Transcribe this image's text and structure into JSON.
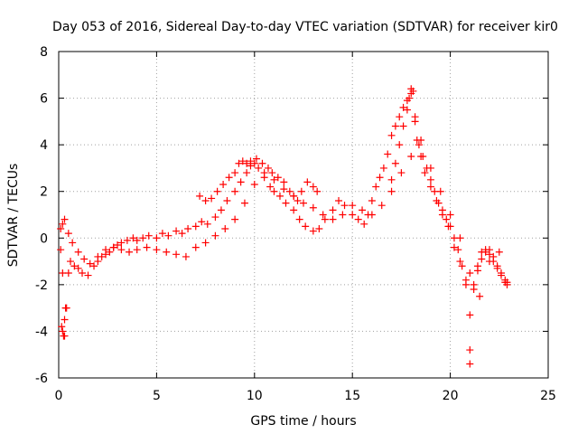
{
  "chart_data": {
    "type": "scatter",
    "title": "Day 053 of 2016, Sidereal Day-to-day VTEC variation (SDTVAR) for receiver kir0",
    "xlabel": "GPS time / hours",
    "ylabel": "SDTVAR / TECUs",
    "xlim": [
      0,
      25
    ],
    "ylim": [
      -6,
      8
    ],
    "xticks": [
      0,
      5,
      10,
      15,
      20,
      25
    ],
    "yticks": [
      -6,
      -4,
      -2,
      0,
      2,
      4,
      6,
      8
    ],
    "grid": true,
    "marker": "+",
    "colors": {
      "series": "#ff0000",
      "grid": "#a0a0a0",
      "axes": "#000000"
    },
    "series": [
      {
        "name": "SDTVAR",
        "x": [
          0.1,
          0.2,
          0.3,
          0.4,
          0.5,
          0.6,
          0.8,
          1.0,
          1.2,
          1.5,
          1.8,
          2.0,
          2.2,
          2.4,
          2.6,
          2.8,
          3.0,
          3.2,
          3.5,
          3.8,
          4.0,
          4.3,
          4.6,
          5.0,
          5.3,
          5.6,
          6.0,
          6.3,
          6.6,
          7.0,
          7.3,
          7.6,
          8.0,
          8.3,
          8.6,
          9.0,
          9.3,
          9.6,
          9.8,
          10.0,
          10.2,
          10.5,
          10.8,
          11.0,
          11.3,
          11.6,
          12.0,
          12.3,
          12.6,
          13.0,
          13.3,
          13.6,
          14.0,
          14.3,
          14.6,
          15.0,
          15.3,
          15.6,
          15.8,
          16.0,
          16.2,
          16.4,
          16.6,
          16.8,
          17.0,
          17.2,
          17.4,
          17.6,
          17.8,
          18.0,
          18.2,
          18.4,
          18.6,
          18.8,
          19.0,
          19.2,
          19.4,
          19.6,
          19.8,
          20.0,
          20.2,
          20.4,
          20.6,
          20.8,
          21.0,
          21.2,
          21.4,
          21.6,
          21.8,
          22.0,
          22.2,
          22.4,
          22.6,
          22.8,
          0.1,
          0.2,
          0.3,
          0.5,
          0.7,
          1.0,
          1.3,
          1.6,
          2.0,
          2.4,
          2.8,
          3.2,
          3.6,
          4.0,
          4.5,
          5.0,
          5.5,
          6.0,
          6.5,
          7.0,
          7.5,
          8.0,
          8.5,
          9.0,
          9.5,
          10.0,
          10.5,
          11.0,
          11.5,
          12.0,
          12.5,
          13.0,
          13.5,
          14.0,
          14.5,
          15.0,
          15.5,
          16.0,
          16.5,
          17.0,
          17.5,
          18.0,
          18.5,
          19.0,
          19.5,
          20.0,
          20.5,
          21.0,
          21.5,
          22.0,
          22.5,
          22.9,
          0.15,
          0.2,
          0.25,
          0.3,
          0.35,
          7.2,
          7.5,
          7.8,
          8.1,
          8.4,
          8.7,
          9.0,
          9.2,
          9.4,
          9.6,
          9.8,
          10.1,
          10.4,
          10.7,
          10.9,
          11.2,
          11.5,
          11.8,
          12.0,
          12.2,
          12.4,
          12.7,
          13.0,
          13.2,
          17.0,
          17.2,
          17.4,
          17.6,
          17.8,
          17.9,
          18.0,
          18.1,
          18.2,
          18.3,
          18.5,
          18.7,
          19.0,
          19.3,
          19.6,
          19.9,
          20.2,
          20.5,
          20.8,
          21.0,
          21.0,
          21.2,
          21.4,
          21.6,
          21.8,
          22.0,
          22.2,
          22.4,
          22.6,
          22.8,
          22.9
        ],
        "y": [
          -0.5,
          -1.5,
          -4.2,
          -3.0,
          -1.5,
          -1.0,
          -1.2,
          -1.3,
          -1.5,
          -1.6,
          -1.2,
          -1.0,
          -0.8,
          -0.7,
          -0.6,
          -0.4,
          -0.3,
          -0.2,
          -0.1,
          0.0,
          -0.1,
          0.0,
          0.1,
          0.0,
          0.2,
          0.1,
          0.3,
          0.2,
          0.4,
          0.5,
          0.7,
          0.6,
          0.9,
          1.2,
          1.6,
          2.0,
          2.4,
          2.8,
          3.1,
          3.2,
          3.0,
          2.6,
          2.2,
          2.0,
          1.8,
          1.5,
          1.2,
          0.8,
          0.5,
          0.3,
          0.4,
          0.8,
          1.2,
          1.6,
          1.4,
          1.0,
          0.8,
          0.6,
          1.0,
          1.6,
          2.2,
          2.6,
          3.0,
          3.6,
          4.4,
          4.8,
          5.2,
          5.6,
          5.9,
          6.2,
          5.0,
          4.0,
          3.5,
          3.0,
          2.5,
          2.0,
          1.5,
          1.2,
          0.8,
          0.5,
          0.0,
          -0.5,
          -1.2,
          -2.0,
          -3.3,
          -2.2,
          -1.4,
          -0.9,
          -0.6,
          -0.5,
          -0.8,
          -1.2,
          -1.5,
          -1.8,
          0.4,
          0.6,
          0.8,
          0.2,
          -0.2,
          -0.6,
          -0.9,
          -1.1,
          -0.8,
          -0.5,
          -0.4,
          -0.5,
          -0.6,
          -0.5,
          -0.4,
          -0.5,
          -0.6,
          -0.7,
          -0.8,
          -0.4,
          -0.2,
          0.1,
          0.4,
          0.8,
          1.5,
          2.3,
          2.8,
          2.5,
          2.1,
          1.8,
          1.5,
          1.3,
          1.0,
          0.8,
          1.0,
          1.4,
          1.2,
          1.0,
          1.4,
          2.0,
          2.8,
          3.5,
          4.2,
          3.0,
          2.0,
          1.0,
          0.0,
          -1.5,
          -2.5,
          -1.0,
          -0.6,
          -1.9,
          -3.8,
          -4.0,
          -4.2,
          -3.5,
          -3.0,
          1.8,
          1.6,
          1.7,
          2.0,
          2.3,
          2.6,
          2.8,
          3.2,
          3.3,
          3.2,
          3.3,
          3.4,
          3.2,
          3.0,
          2.8,
          2.6,
          2.4,
          2.0,
          1.8,
          1.6,
          2.0,
          2.4,
          2.2,
          2.0,
          2.5,
          3.2,
          4.0,
          4.8,
          5.5,
          6.0,
          6.4,
          6.3,
          5.2,
          4.2,
          3.5,
          2.8,
          2.2,
          1.6,
          1.0,
          0.5,
          -0.4,
          -1.0,
          -1.8,
          -4.8,
          -5.4,
          -2.0,
          -1.2,
          -0.6,
          -0.5,
          -0.7,
          -1.0,
          -1.3,
          -1.6,
          -1.9,
          -2.0
        ]
      }
    ]
  }
}
